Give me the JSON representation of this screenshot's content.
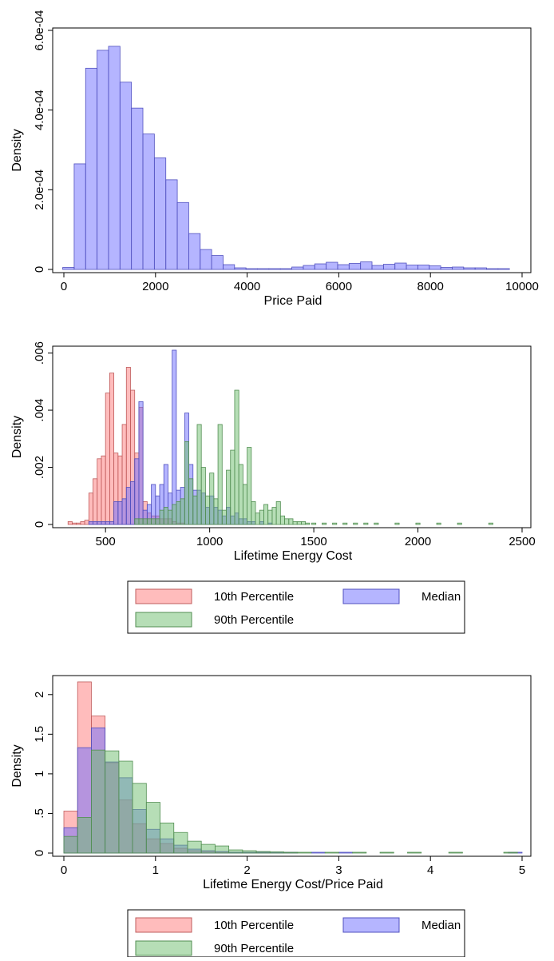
{
  "chart_data": [
    {
      "type": "histogram",
      "xlabel": "Price Paid",
      "ylabel": "Density",
      "xlim": [
        0,
        10000
      ],
      "ylim": [
        0,
        0.0006
      ],
      "xticks": [
        0,
        2000,
        4000,
        6000,
        8000,
        10000
      ],
      "xtick_labels": [
        "0",
        "2000",
        "4000",
        "6000",
        "8000",
        "10000"
      ],
      "yticks": [
        0,
        0.0002,
        0.0004,
        0.0006
      ],
      "ytick_labels": [
        "0",
        "2.0e-04",
        "4.0e-04",
        "6.0e-04"
      ],
      "grid": false,
      "legend": "none",
      "series": [
        {
          "color": "#6b6bff",
          "bin_width": 250,
          "bins": [
            [
              100,
              5e-06
            ],
            [
              350,
              0.000265
            ],
            [
              600,
              0.000505
            ],
            [
              850,
              0.00055
            ],
            [
              1100,
              0.00056
            ],
            [
              1350,
              0.00047
            ],
            [
              1600,
              0.000405
            ],
            [
              1850,
              0.00034
            ],
            [
              2100,
              0.00028
            ],
            [
              2350,
              0.000225
            ],
            [
              2600,
              0.000168
            ],
            [
              2850,
              9e-05
            ],
            [
              3100,
              5e-05
            ],
            [
              3350,
              3.5e-05
            ],
            [
              3600,
              1.2e-05
            ],
            [
              3850,
              4e-06
            ],
            [
              4100,
              2e-06
            ],
            [
              4350,
              2e-06
            ],
            [
              4600,
              2e-06
            ],
            [
              4850,
              2e-06
            ],
            [
              5100,
              6e-06
            ],
            [
              5350,
              1e-05
            ],
            [
              5600,
              1.4e-05
            ],
            [
              5850,
              1.8e-05
            ],
            [
              6100,
              1.2e-05
            ],
            [
              6350,
              1.5e-05
            ],
            [
              6600,
              1.9e-05
            ],
            [
              6850,
              1e-05
            ],
            [
              7100,
              1.3e-05
            ],
            [
              7350,
              1.6e-05
            ],
            [
              7600,
              1.1e-05
            ],
            [
              7850,
              1.1e-05
            ],
            [
              8100,
              9e-06
            ],
            [
              8350,
              5e-06
            ],
            [
              8600,
              6e-06
            ],
            [
              8850,
              4e-06
            ],
            [
              9100,
              4e-06
            ],
            [
              9350,
              2e-06
            ],
            [
              9600,
              1e-06
            ]
          ]
        }
      ]
    },
    {
      "type": "histogram",
      "xlabel": "Lifetime Energy Cost",
      "ylabel": "Density",
      "xlim": [
        300,
        2500
      ],
      "ylim": [
        0,
        0.006
      ],
      "xticks": [
        500,
        1000,
        1500,
        2000,
        2500
      ],
      "xtick_labels": [
        "500",
        "1000",
        "1500",
        "2000",
        "2500"
      ],
      "yticks": [
        0,
        0.002,
        0.004,
        0.006
      ],
      "ytick_labels": [
        "0",
        ".002",
        ".004",
        ".006"
      ],
      "grid": false,
      "legend": "bottom",
      "series": [
        {
          "name": "10th Percentile",
          "color": "#ff7a7a",
          "bin_width": 20,
          "bins": [
            [
              330,
              0.0001
            ],
            [
              350,
              5e-05
            ],
            [
              370,
              5e-05
            ],
            [
              390,
              0.0001
            ],
            [
              410,
              0.00015
            ],
            [
              430,
              0.0011
            ],
            [
              450,
              0.0016
            ],
            [
              470,
              0.0023
            ],
            [
              490,
              0.0024
            ],
            [
              510,
              0.0046
            ],
            [
              530,
              0.0053
            ],
            [
              550,
              0.0025
            ],
            [
              570,
              0.0024
            ],
            [
              590,
              0.0035
            ],
            [
              610,
              0.0055
            ],
            [
              630,
              0.0047
            ],
            [
              650,
              0.0025
            ],
            [
              670,
              0.0041
            ],
            [
              690,
              0.0008
            ],
            [
              710,
              0.0004
            ],
            [
              730,
              0.0003
            ],
            [
              750,
              0.0003
            ],
            [
              770,
              0.0002
            ],
            [
              790,
              0.0002
            ],
            [
              810,
              0.0002
            ],
            [
              830,
              0.0001
            ],
            [
              850,
              5e-05
            ],
            [
              870,
              5e-05
            ]
          ]
        },
        {
          "name": "Median",
          "color": "#6b6bff",
          "bin_width": 20,
          "bins": [
            [
              430,
              0.0001
            ],
            [
              450,
              0.0001
            ],
            [
              470,
              0.0001
            ],
            [
              490,
              0.0001
            ],
            [
              510,
              0.0001
            ],
            [
              530,
              0.0001
            ],
            [
              550,
              0.0008
            ],
            [
              570,
              0.0008
            ],
            [
              590,
              0.0009
            ],
            [
              610,
              0.0013
            ],
            [
              630,
              0.0015
            ],
            [
              650,
              0.0023
            ],
            [
              670,
              0.0043
            ],
            [
              690,
              0.0005
            ],
            [
              710,
              0.0007
            ],
            [
              730,
              0.0014
            ],
            [
              750,
              0.001
            ],
            [
              770,
              0.0014
            ],
            [
              790,
              0.0021
            ],
            [
              810,
              0.0011
            ],
            [
              830,
              0.0061
            ],
            [
              850,
              0.0012
            ],
            [
              870,
              0.0013
            ],
            [
              890,
              0.0039
            ],
            [
              910,
              0.0021
            ],
            [
              930,
              0.0012
            ],
            [
              950,
              0.0012
            ],
            [
              970,
              0.0011
            ],
            [
              990,
              0.0006
            ],
            [
              1010,
              0.001
            ],
            [
              1030,
              0.0006
            ],
            [
              1050,
              0.0005
            ],
            [
              1070,
              0.0003
            ],
            [
              1090,
              0.0006
            ],
            [
              1110,
              0.0003
            ],
            [
              1130,
              0.0004
            ],
            [
              1150,
              0.0002
            ],
            [
              1170,
              0.0002
            ],
            [
              1190,
              0.0001
            ],
            [
              1210,
              0.0001
            ],
            [
              1250,
              0.0001
            ],
            [
              1290,
              5e-05
            ]
          ]
        },
        {
          "name": "90th Percentile",
          "color": "#6dbd6d",
          "bin_width": 20,
          "bins": [
            [
              650,
              0.0002
            ],
            [
              670,
              0.0002
            ],
            [
              690,
              0.0002
            ],
            [
              710,
              0.0002
            ],
            [
              730,
              0.0002
            ],
            [
              750,
              0.0002
            ],
            [
              770,
              0.0005
            ],
            [
              790,
              0.0006
            ],
            [
              810,
              0.0005
            ],
            [
              830,
              0.0007
            ],
            [
              850,
              0.0008
            ],
            [
              870,
              0.0009
            ],
            [
              890,
              0.0029
            ],
            [
              910,
              0.0016
            ],
            [
              930,
              0.001
            ],
            [
              950,
              0.0035
            ],
            [
              970,
              0.002
            ],
            [
              990,
              0.001
            ],
            [
              1010,
              0.0018
            ],
            [
              1030,
              0.0009
            ],
            [
              1050,
              0.0035
            ],
            [
              1070,
              0.0005
            ],
            [
              1090,
              0.0019
            ],
            [
              1110,
              0.0026
            ],
            [
              1130,
              0.0047
            ],
            [
              1150,
              0.0021
            ],
            [
              1170,
              0.0014
            ],
            [
              1190,
              0.0027
            ],
            [
              1210,
              0.0008
            ],
            [
              1230,
              0.0004
            ],
            [
              1250,
              0.0005
            ],
            [
              1270,
              0.0007
            ],
            [
              1290,
              0.0005
            ],
            [
              1310,
              0.0006
            ],
            [
              1330,
              0.0008
            ],
            [
              1350,
              0.0003
            ],
            [
              1370,
              0.0002
            ],
            [
              1390,
              0.0002
            ],
            [
              1410,
              0.0001
            ],
            [
              1430,
              0.0001
            ],
            [
              1450,
              0.0001
            ],
            [
              1470,
              5e-05
            ],
            [
              1500,
              5e-05
            ],
            [
              1550,
              5e-05
            ],
            [
              1600,
              5e-05
            ],
            [
              1650,
              5e-05
            ],
            [
              1700,
              5e-05
            ],
            [
              1750,
              5e-05
            ],
            [
              1800,
              5e-05
            ],
            [
              1900,
              5e-05
            ],
            [
              2000,
              5e-05
            ],
            [
              2100,
              5e-05
            ],
            [
              2200,
              5e-05
            ],
            [
              2350,
              5e-05
            ]
          ]
        }
      ]
    },
    {
      "type": "histogram",
      "xlabel": "Lifetime Energy Cost/Price Paid",
      "ylabel": "Density",
      "xlim": [
        0,
        5
      ],
      "ylim": [
        0,
        2.2
      ],
      "xticks": [
        0,
        1,
        2,
        3,
        4,
        5
      ],
      "xtick_labels": [
        "0",
        "1",
        "2",
        "3",
        "4",
        "5"
      ],
      "yticks": [
        0,
        0.5,
        1,
        1.5,
        2
      ],
      "ytick_labels": [
        "0",
        ".5",
        "1",
        "1.5",
        "2"
      ],
      "grid": false,
      "legend": "bottom",
      "series": [
        {
          "name": "10th Percentile",
          "color": "#ff7a7a",
          "bin_width": 0.15,
          "bins": [
            [
              0.075,
              0.53
            ],
            [
              0.225,
              2.16
            ],
            [
              0.375,
              1.73
            ],
            [
              0.525,
              1.14
            ],
            [
              0.675,
              0.67
            ],
            [
              0.825,
              0.37
            ],
            [
              0.975,
              0.18
            ],
            [
              1.125,
              0.12
            ],
            [
              1.275,
              0.06
            ],
            [
              1.425,
              0.03
            ],
            [
              1.575,
              0.02
            ],
            [
              1.725,
              0.01
            ],
            [
              1.875,
              0.01
            ],
            [
              2.025,
              0.01
            ],
            [
              2.175,
              0.01
            ],
            [
              2.325,
              0.005
            ],
            [
              2.475,
              0.005
            ]
          ]
        },
        {
          "name": "Median",
          "color": "#6b6bff",
          "bin_width": 0.15,
          "bins": [
            [
              0.075,
              0.32
            ],
            [
              0.225,
              1.33
            ],
            [
              0.375,
              1.58
            ],
            [
              0.525,
              1.15
            ],
            [
              0.675,
              0.95
            ],
            [
              0.825,
              0.55
            ],
            [
              0.975,
              0.3
            ],
            [
              1.125,
              0.18
            ],
            [
              1.275,
              0.1
            ],
            [
              1.425,
              0.05
            ],
            [
              1.575,
              0.03
            ],
            [
              1.725,
              0.02
            ],
            [
              1.875,
              0.01
            ],
            [
              2.025,
              0.01
            ],
            [
              2.175,
              0.01
            ],
            [
              2.325,
              0.01
            ],
            [
              2.475,
              0.005
            ],
            [
              2.775,
              0.005
            ],
            [
              3.075,
              0.005
            ],
            [
              4.925,
              0.005
            ]
          ]
        },
        {
          "name": "90th Percentile",
          "color": "#6dbd6d",
          "bin_width": 0.15,
          "bins": [
            [
              0.075,
              0.21
            ],
            [
              0.225,
              0.45
            ],
            [
              0.375,
              1.3
            ],
            [
              0.525,
              1.29
            ],
            [
              0.675,
              1.16
            ],
            [
              0.825,
              0.88
            ],
            [
              0.975,
              0.64
            ],
            [
              1.125,
              0.38
            ],
            [
              1.275,
              0.26
            ],
            [
              1.425,
              0.15
            ],
            [
              1.575,
              0.11
            ],
            [
              1.725,
              0.09
            ],
            [
              1.875,
              0.04
            ],
            [
              2.025,
              0.03
            ],
            [
              2.175,
              0.02
            ],
            [
              2.325,
              0.015
            ],
            [
              2.475,
              0.01
            ],
            [
              2.625,
              0.01
            ],
            [
              2.925,
              0.005
            ],
            [
              3.225,
              0.005
            ],
            [
              3.525,
              0.005
            ],
            [
              3.825,
              0.005
            ],
            [
              4.275,
              0.005
            ],
            [
              4.875,
              0.005
            ]
          ]
        }
      ]
    }
  ]
}
